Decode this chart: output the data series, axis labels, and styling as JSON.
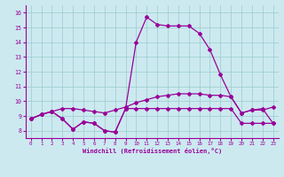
{
  "xlabel": "Windchill (Refroidissement éolien,°C)",
  "background_color": "#cce9f0",
  "line_color": "#990099",
  "grid_color": "#99cccc",
  "xlim": [
    -0.5,
    23.5
  ],
  "ylim": [
    7.5,
    16.5
  ],
  "xticks": [
    0,
    1,
    2,
    3,
    4,
    5,
    6,
    7,
    8,
    9,
    10,
    11,
    12,
    13,
    14,
    15,
    16,
    17,
    18,
    19,
    20,
    21,
    22,
    23
  ],
  "yticks": [
    8,
    9,
    10,
    11,
    12,
    13,
    14,
    15,
    16
  ],
  "curve_big_x": [
    0,
    1,
    2,
    3,
    4,
    5,
    6,
    7,
    8,
    9,
    10,
    11,
    12,
    13,
    14,
    15,
    16,
    17,
    18,
    19,
    20,
    21,
    22,
    23
  ],
  "curve_big_y": [
    8.8,
    9.1,
    9.3,
    8.8,
    8.1,
    8.6,
    8.5,
    8.0,
    7.9,
    9.5,
    14.0,
    15.7,
    15.2,
    15.1,
    15.1,
    15.1,
    14.6,
    13.5,
    11.8,
    10.3,
    9.2,
    9.4,
    9.5,
    8.5
  ],
  "curve_mid_x": [
    0,
    1,
    2,
    3,
    4,
    5,
    6,
    7,
    8,
    9,
    10,
    11,
    12,
    13,
    14,
    15,
    16,
    17,
    18,
    19,
    20,
    21,
    22,
    23
  ],
  "curve_mid_y": [
    8.8,
    9.1,
    9.3,
    9.5,
    9.5,
    9.4,
    9.3,
    9.2,
    9.4,
    9.6,
    9.9,
    10.1,
    10.3,
    10.4,
    10.5,
    10.5,
    10.5,
    10.4,
    10.4,
    10.3,
    9.2,
    9.4,
    9.4,
    9.6
  ],
  "curve_low_x": [
    0,
    1,
    2,
    3,
    4,
    5,
    6,
    7,
    8,
    9,
    10,
    11,
    12,
    13,
    14,
    15,
    16,
    17,
    18,
    19,
    20,
    21,
    22,
    23
  ],
  "curve_low_y": [
    8.8,
    9.1,
    9.3,
    8.8,
    8.1,
    8.6,
    8.5,
    8.0,
    7.9,
    9.5,
    9.5,
    9.5,
    9.5,
    9.5,
    9.5,
    9.5,
    9.5,
    9.5,
    9.5,
    9.5,
    8.5,
    8.5,
    8.5,
    8.5
  ]
}
